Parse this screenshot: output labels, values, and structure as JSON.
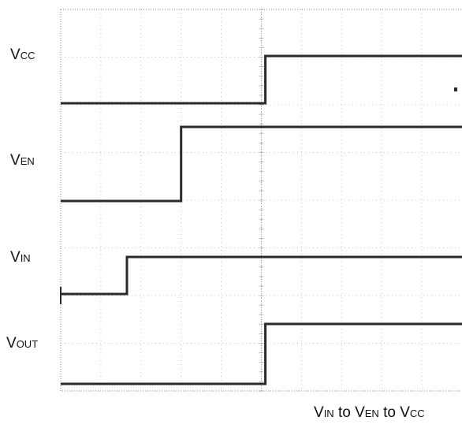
{
  "chart_data": {
    "type": "line",
    "title": "",
    "x_divisions": 10,
    "grid": true,
    "caption": [
      {
        "main": "V",
        "sub": "IN"
      },
      {
        "main": " to V",
        "sub": "EN"
      },
      {
        "main": " to V",
        "sub": "CC"
      }
    ],
    "series": [
      {
        "name": "V",
        "sub": "CC",
        "x": [
          0,
          5.1,
          5.1,
          10
        ],
        "levels": [
          "low",
          "low",
          "high",
          "high"
        ]
      },
      {
        "name": "V",
        "sub": "EN",
        "x": [
          0,
          3.0,
          3.0,
          10
        ],
        "levels": [
          "low",
          "low",
          "high",
          "high"
        ]
      },
      {
        "name": "V",
        "sub": "IN",
        "x": [
          0,
          1.65,
          1.65,
          10
        ],
        "levels": [
          "low",
          "low",
          "high",
          "high"
        ]
      },
      {
        "name": "V",
        "sub": "OUT",
        "x": [
          0,
          5.1,
          5.1,
          10
        ],
        "levels": [
          "low",
          "low",
          "high",
          "high"
        ]
      }
    ],
    "colors": {
      "trace": "#2a2a2a",
      "grid": "#b8b8b8",
      "frame": "#9a9a9a"
    }
  }
}
